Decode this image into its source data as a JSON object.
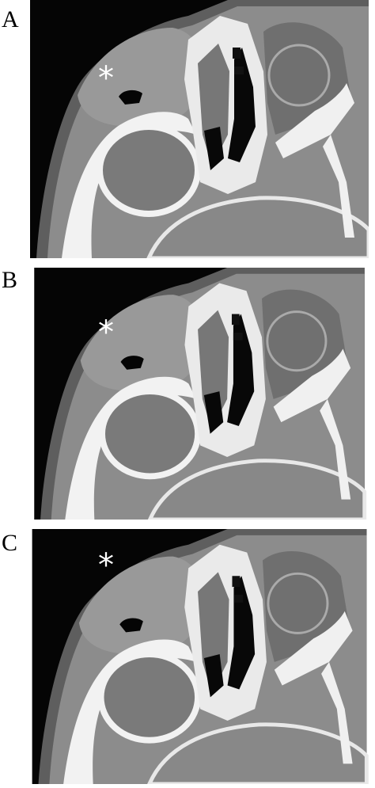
{
  "panels": [
    {
      "label": "A",
      "annotation": "*"
    },
    {
      "label": "B",
      "annotation": "*"
    },
    {
      "label": "C",
      "annotation": "*"
    }
  ]
}
